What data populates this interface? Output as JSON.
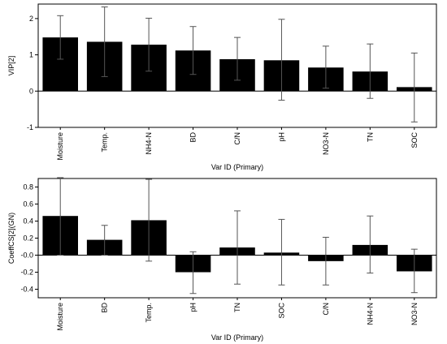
{
  "chart_data": [
    {
      "type": "bar",
      "xlabel": "Var ID (Primary)",
      "ylabel": "VIP[2]",
      "ylim": [
        -1,
        2.4
      ],
      "yticks": [
        -1,
        0,
        1,
        2
      ],
      "grid": false,
      "categories": [
        "Moisture",
        "Temp.",
        "NH4-N",
        "BD",
        "C/N",
        "pH",
        "NO3-N",
        "TN",
        "SOC"
      ],
      "values": [
        1.48,
        1.36,
        1.28,
        1.12,
        0.88,
        0.85,
        0.65,
        0.54,
        0.11
      ],
      "error_low": [
        0.88,
        0.4,
        0.55,
        0.46,
        0.3,
        -0.25,
        0.08,
        -0.2,
        -0.85
      ],
      "error_high": [
        2.08,
        2.32,
        2.01,
        1.78,
        1.48,
        1.98,
        1.24,
        1.3,
        1.05
      ],
      "color": "#000000"
    },
    {
      "type": "bar",
      "xlabel": "Var ID (Primary)",
      "ylabel": "CoeffCS[2](GN)",
      "ylim": [
        -0.5,
        0.9
      ],
      "yticks": [
        -0.4,
        -0.2,
        0.0,
        0.2,
        0.4,
        0.6,
        0.8
      ],
      "ytick_labels": [
        "-0.4",
        "-0.2",
        "-0.0",
        "0.2",
        "0.4",
        "0.6",
        "0.8"
      ],
      "grid": false,
      "categories": [
        "Moisture",
        "BD",
        "Temp.",
        "pH",
        "TN",
        "SOC",
        "C/N",
        "NH4-N",
        "NO3-N"
      ],
      "values": [
        0.46,
        0.18,
        0.41,
        -0.2,
        0.09,
        0.03,
        -0.07,
        0.12,
        -0.19
      ],
      "error_low": [
        0.0,
        0.0,
        -0.07,
        -0.45,
        -0.34,
        -0.35,
        -0.35,
        -0.21,
        -0.44
      ],
      "error_high": [
        0.91,
        0.35,
        0.89,
        0.04,
        0.52,
        0.42,
        0.21,
        0.46,
        0.07
      ],
      "color": "#000000"
    }
  ]
}
